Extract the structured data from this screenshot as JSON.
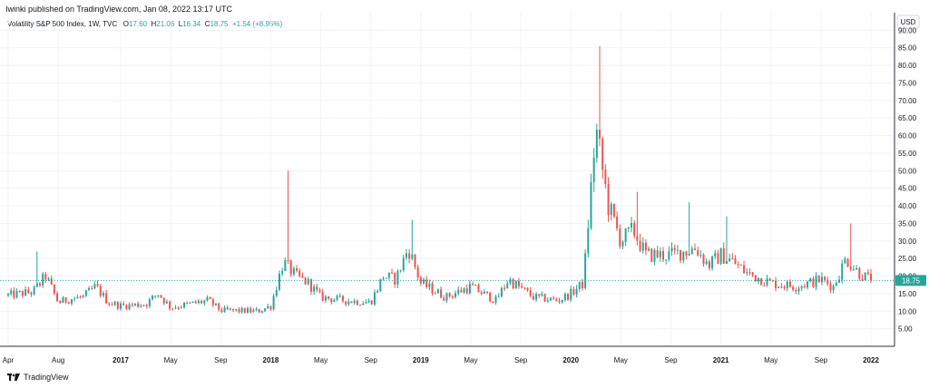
{
  "publisher_line": "Iwinki published on TradingView.com, Jan 08, 2022 13:17 UTC",
  "legend": {
    "symbol": "Volatility S&P 500 Index, 1W, TVC",
    "o_label": "O",
    "open": "17.60",
    "h_label": "H",
    "high": "21.06",
    "l_label": "L",
    "low": "16.34",
    "c_label": "C",
    "close": "18.75",
    "change": "+1.54 (+8.95%)"
  },
  "footer": {
    "brand": "TradingView",
    "logo_icon": "tradingview-logo-icon"
  },
  "colors": {
    "up": "#26a69a",
    "down": "#ef5350",
    "grid": "#f0f3fa",
    "last_price_tag": "#26a69a"
  },
  "chart_data": {
    "type": "candlestick",
    "currency_label": "USD",
    "last_price": "18.75",
    "ylim": [
      0,
      95
    ],
    "y_ticks": [
      "5.00",
      "10.00",
      "15.00",
      "20.00",
      "25.00",
      "30.00",
      "35.00",
      "40.00",
      "45.00",
      "50.00",
      "55.00",
      "60.00",
      "65.00",
      "70.00",
      "75.00",
      "80.00",
      "85.00",
      "90.00"
    ],
    "x_ticks": [
      {
        "label": "Apr",
        "date": "2016-04",
        "year": false
      },
      {
        "label": "Aug",
        "date": "2016-08",
        "year": false
      },
      {
        "label": "2017",
        "date": "2017-01",
        "year": true
      },
      {
        "label": "May",
        "date": "2017-05",
        "year": false
      },
      {
        "label": "Sep",
        "date": "2017-09",
        "year": false
      },
      {
        "label": "2018",
        "date": "2018-01",
        "year": true
      },
      {
        "label": "May",
        "date": "2018-05",
        "year": false
      },
      {
        "label": "Sep",
        "date": "2018-09",
        "year": false
      },
      {
        "label": "2019",
        "date": "2019-01",
        "year": true
      },
      {
        "label": "May",
        "date": "2019-05",
        "year": false
      },
      {
        "label": "Sep",
        "date": "2019-09",
        "year": false
      },
      {
        "label": "2020",
        "date": "2020-01",
        "year": true
      },
      {
        "label": "May",
        "date": "2020-05",
        "year": false
      },
      {
        "label": "Sep",
        "date": "2020-09",
        "year": false
      },
      {
        "label": "2021",
        "date": "2021-01",
        "year": true
      },
      {
        "label": "May",
        "date": "2021-05",
        "year": false
      },
      {
        "label": "Sep",
        "date": "2021-09",
        "year": false
      },
      {
        "label": "2022",
        "date": "2022-01",
        "year": true
      }
    ],
    "x_range": [
      "2016-04",
      "2022-01"
    ],
    "anchors": [
      [
        "2016-04",
        14.5
      ],
      [
        "2016-06",
        15.5
      ],
      [
        "2016-07",
        20
      ],
      [
        "2016-08",
        12.5
      ],
      [
        "2016-09",
        13.5
      ],
      [
        "2016-10",
        14
      ],
      [
        "2016-11",
        17
      ],
      [
        "2016-12",
        12.5
      ],
      [
        "2017-01",
        11.5
      ],
      [
        "2017-03",
        12
      ],
      [
        "2017-04",
        15
      ],
      [
        "2017-05",
        11
      ],
      [
        "2017-08",
        13
      ],
      [
        "2017-09",
        10.2
      ],
      [
        "2017-12",
        10
      ],
      [
        "2018-01",
        11.5
      ],
      [
        "2018-02",
        24
      ],
      [
        "2018-03",
        20
      ],
      [
        "2018-04",
        18
      ],
      [
        "2018-05",
        14
      ],
      [
        "2018-07",
        13
      ],
      [
        "2018-09",
        12.5
      ],
      [
        "2018-10",
        20
      ],
      [
        "2018-11",
        19
      ],
      [
        "2018-12",
        28
      ],
      [
        "2019-01",
        18
      ],
      [
        "2019-03",
        14
      ],
      [
        "2019-05",
        17
      ],
      [
        "2019-07",
        13
      ],
      [
        "2019-08",
        19
      ],
      [
        "2019-10",
        14
      ],
      [
        "2019-12",
        13
      ],
      [
        "2020-01",
        15
      ],
      [
        "2020-02",
        18
      ],
      [
        "2020-03",
        62
      ],
      [
        "2020-04",
        40
      ],
      [
        "2020-05",
        30
      ],
      [
        "2020-06",
        33
      ],
      [
        "2020-07",
        26
      ],
      [
        "2020-09",
        26
      ],
      [
        "2020-11",
        28
      ],
      [
        "2020-12",
        23
      ],
      [
        "2021-01",
        26
      ],
      [
        "2021-02",
        24
      ],
      [
        "2021-03",
        21
      ],
      [
        "2021-05",
        18
      ],
      [
        "2021-07",
        17
      ],
      [
        "2021-09",
        19
      ],
      [
        "2021-10",
        17
      ],
      [
        "2021-11",
        25
      ],
      [
        "2021-12",
        21
      ],
      [
        "2022-01",
        18.75
      ]
    ],
    "spikes": [
      {
        "date": "2016-06",
        "high": 27
      },
      {
        "date": "2018-02",
        "high": 50
      },
      {
        "date": "2018-12",
        "high": 36
      },
      {
        "date": "2020-03",
        "high": 85.5
      },
      {
        "date": "2020-06",
        "high": 44
      },
      {
        "date": "2020-10",
        "high": 41
      },
      {
        "date": "2021-01",
        "high": 37
      },
      {
        "date": "2021-11",
        "high": 35
      }
    ]
  }
}
